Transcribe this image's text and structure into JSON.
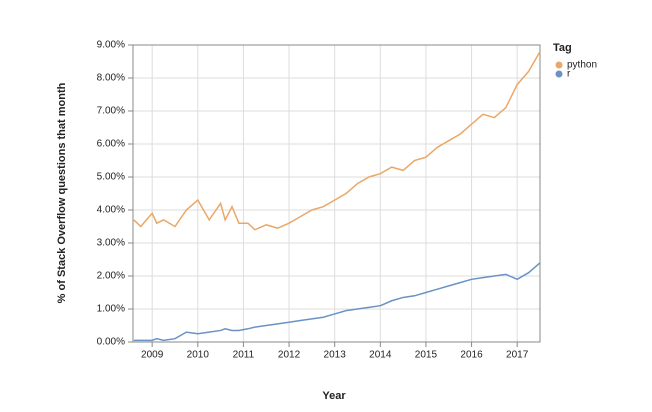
{
  "chart_data": {
    "type": "line",
    "x_label": "Year",
    "y_label": "% of Stack Overflow questions that month",
    "legend_title": "Tag",
    "legend_position": "right",
    "grid": true,
    "x": [
      2008.6,
      2008.75,
      2009.0,
      2009.1,
      2009.25,
      2009.5,
      2009.75,
      2010.0,
      2010.25,
      2010.5,
      2010.6,
      2010.75,
      2010.9,
      2011.1,
      2011.25,
      2011.5,
      2011.75,
      2012.0,
      2012.25,
      2012.5,
      2012.75,
      2013.0,
      2013.25,
      2013.5,
      2013.75,
      2014.0,
      2014.25,
      2014.5,
      2014.75,
      2015.0,
      2015.25,
      2015.5,
      2015.75,
      2016.0,
      2016.25,
      2016.5,
      2016.75,
      2017.0,
      2017.25,
      2017.5
    ],
    "series": [
      {
        "name": "python",
        "color": "#eaa868",
        "values": [
          3.7,
          3.5,
          3.9,
          3.6,
          3.7,
          3.5,
          4.0,
          4.3,
          3.7,
          4.2,
          3.7,
          4.1,
          3.6,
          3.6,
          3.4,
          3.55,
          3.45,
          3.6,
          3.8,
          4.0,
          4.1,
          4.3,
          4.5,
          4.8,
          5.0,
          5.1,
          5.3,
          5.2,
          5.5,
          5.6,
          5.9,
          6.1,
          6.3,
          6.6,
          6.9,
          6.8,
          7.1,
          7.8,
          8.2,
          8.8
        ]
      },
      {
        "name": "r",
        "color": "#6a93c4",
        "values": [
          0.05,
          0.05,
          0.05,
          0.1,
          0.05,
          0.1,
          0.3,
          0.25,
          0.3,
          0.35,
          0.4,
          0.35,
          0.35,
          0.4,
          0.45,
          0.5,
          0.55,
          0.6,
          0.65,
          0.7,
          0.75,
          0.85,
          0.95,
          1.0,
          1.05,
          1.1,
          1.25,
          1.35,
          1.4,
          1.5,
          1.6,
          1.7,
          1.8,
          1.9,
          1.95,
          2.0,
          2.05,
          1.9,
          2.1,
          2.4
        ]
      }
    ],
    "xlim": [
      2008.58,
      2017.5
    ],
    "xticks": [
      2009,
      2010,
      2011,
      2012,
      2013,
      2014,
      2015,
      2016,
      2017
    ],
    "ylim": [
      0,
      9
    ],
    "yticks": [
      {
        "value": 0,
        "label": "0.00%"
      },
      {
        "value": 1,
        "label": "1.00%"
      },
      {
        "value": 2,
        "label": "2.00%"
      },
      {
        "value": 3,
        "label": "3.00%"
      },
      {
        "value": 4,
        "label": "4.00%"
      },
      {
        "value": 5,
        "label": "5.00%"
      },
      {
        "value": 6,
        "label": "6.00%"
      },
      {
        "value": 7,
        "label": "7.00%"
      },
      {
        "value": 8,
        "label": "8.00%"
      },
      {
        "value": 9,
        "label": "9.00%"
      }
    ]
  }
}
